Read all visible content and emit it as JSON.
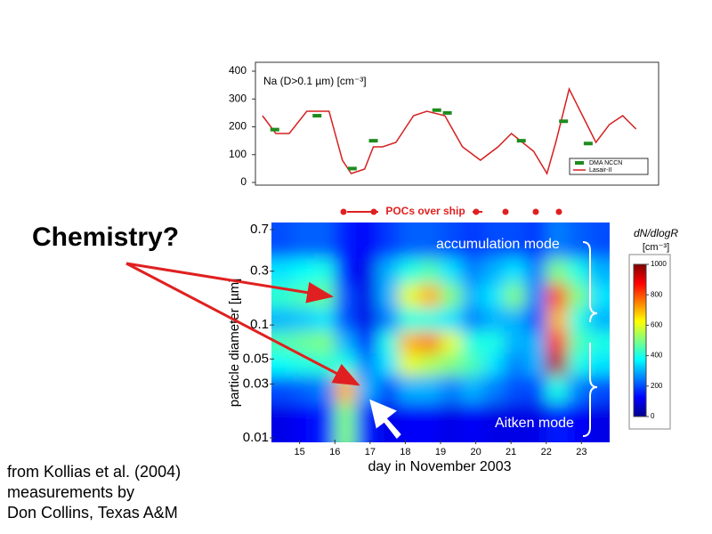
{
  "slide": {
    "annotation": "Chemistry?",
    "credit": [
      "from Kollias et al. (2004)",
      "measurements by",
      "Don Collins, Texas A&M"
    ]
  },
  "chart_data": [
    {
      "type": "line",
      "title": "Na (D>0.1 µm) [cm⁻³]",
      "xlim": [
        13.75,
        25.2
      ],
      "ylim": [
        0,
        400
      ],
      "yticks": [
        0,
        100,
        200,
        300,
        400
      ],
      "series": [
        {
          "name": "Lasair-II",
          "color": "#d62020",
          "marker": "line",
          "x": [
            13.95,
            14.33,
            14.71,
            15.21,
            15.84,
            16.22,
            16.47,
            16.85,
            17.1,
            17.36,
            17.74,
            18.24,
            18.62,
            19.13,
            19.63,
            20.14,
            20.64,
            21.02,
            21.65,
            22.03,
            22.28,
            22.66,
            23.04,
            23.42,
            23.8,
            24.18,
            24.56
          ],
          "values": [
            240,
            176,
            176,
            256,
            256,
            80,
            32,
            48,
            128,
            128,
            144,
            240,
            256,
            240,
            128,
            80,
            128,
            176,
            112,
            32,
            144,
            336,
            240,
            144,
            208,
            240,
            192
          ]
        },
        {
          "name": "DMA NCCN",
          "color": "#1e8c1e",
          "marker": "square",
          "x": [
            14.3,
            15.5,
            16.5,
            17.1,
            18.9,
            19.2,
            21.3,
            22.5,
            23.2
          ],
          "values": [
            190,
            240,
            50,
            150,
            260,
            250,
            150,
            220,
            140
          ]
        }
      ]
    },
    {
      "type": "heatmap",
      "xlabel": "day in November 2003",
      "ylabel": "particle diameter [µm]",
      "xlim": [
        14.2,
        23.8
      ],
      "xticks": [
        15,
        16,
        17,
        18,
        19,
        20,
        21,
        22,
        23
      ],
      "log_y": true,
      "ylim": [
        0.01,
        0.7
      ],
      "yticks": [
        0.01,
        0.03,
        0.05,
        0.1,
        0.3,
        0.7
      ],
      "x": [
        14.5,
        15.1,
        15.7,
        16.3,
        16.9,
        17.5,
        18.1,
        18.7,
        19.3,
        19.9,
        20.5,
        21.1,
        21.7,
        22.3,
        22.9,
        23.5
      ],
      "y": [
        0.5,
        0.3,
        0.18,
        0.11,
        0.07,
        0.045,
        0.028,
        0.015
      ],
      "z": [
        [
          200,
          220,
          220,
          150,
          120,
          180,
          220,
          220,
          200,
          180,
          200,
          200,
          180,
          250,
          220,
          200
        ],
        [
          350,
          380,
          400,
          150,
          100,
          300,
          400,
          450,
          350,
          250,
          300,
          350,
          250,
          500,
          400,
          300
        ],
        [
          420,
          450,
          480,
          200,
          100,
          300,
          600,
          700,
          500,
          300,
          350,
          500,
          250,
          800,
          500,
          350
        ],
        [
          300,
          320,
          350,
          200,
          100,
          250,
          400,
          400,
          350,
          250,
          300,
          300,
          200,
          700,
          400,
          300
        ],
        [
          450,
          480,
          500,
          300,
          150,
          400,
          700,
          750,
          600,
          400,
          400,
          300,
          300,
          850,
          450,
          400
        ],
        [
          380,
          400,
          420,
          400,
          250,
          350,
          600,
          550,
          500,
          450,
          350,
          250,
          300,
          950,
          400,
          350
        ],
        [
          200,
          220,
          250,
          700,
          300,
          200,
          300,
          300,
          250,
          300,
          250,
          200,
          200,
          400,
          250,
          200
        ],
        [
          100,
          120,
          150,
          500,
          150,
          100,
          120,
          120,
          100,
          120,
          100,
          100,
          100,
          150,
          120,
          100
        ]
      ],
      "colorbar": {
        "title": "dN/dlogR",
        "unit": "[cm⁻³]",
        "lim": [
          0,
          1000
        ],
        "ticks": [
          0,
          200,
          400,
          600,
          800,
          1000
        ]
      },
      "annotations": [
        "POCs over ship",
        "accumulation mode",
        "Aitken mode"
      ]
    }
  ]
}
